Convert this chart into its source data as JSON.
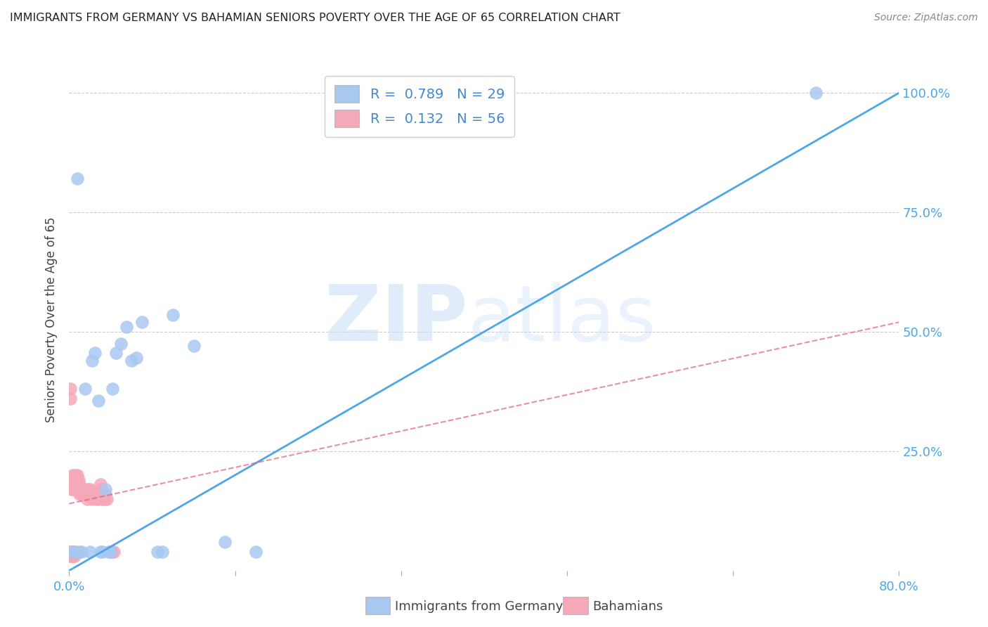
{
  "title": "IMMIGRANTS FROM GERMANY VS BAHAMIAN SENIORS POVERTY OVER THE AGE OF 65 CORRELATION CHART",
  "source": "Source: ZipAtlas.com",
  "ylabel": "Seniors Poverty Over the Age of 65",
  "right_yticks": [
    "100.0%",
    "75.0%",
    "50.0%",
    "25.0%"
  ],
  "right_ytick_vals": [
    1.0,
    0.75,
    0.5,
    0.25
  ],
  "legend_label1_R": "0.789",
  "legend_label1_N": "29",
  "legend_label2_R": "0.132",
  "legend_label2_N": "56",
  "footer_label1": "Immigrants from Germany",
  "footer_label2": "Bahamians",
  "blue_color": "#a8c8f0",
  "pink_color": "#f5a8b8",
  "blue_line_color": "#4da6e8",
  "pink_line_color": "#e06080",
  "blue_scatter_x": [
    0.008,
    0.015,
    0.022,
    0.025,
    0.028,
    0.032,
    0.035,
    0.038,
    0.042,
    0.045,
    0.05,
    0.055,
    0.06,
    0.065,
    0.07,
    0.085,
    0.09,
    0.1,
    0.12,
    0.15,
    0.18,
    0.004,
    0.006,
    0.01,
    0.012,
    0.02,
    0.03,
    0.04,
    0.72
  ],
  "blue_scatter_y": [
    0.82,
    0.38,
    0.44,
    0.455,
    0.355,
    0.04,
    0.17,
    0.04,
    0.38,
    0.455,
    0.475,
    0.51,
    0.44,
    0.445,
    0.52,
    0.04,
    0.04,
    0.535,
    0.47,
    0.06,
    0.04,
    0.04,
    0.04,
    0.04,
    0.04,
    0.04,
    0.04,
    0.04,
    1.0
  ],
  "pink_scatter_x": [
    0.001,
    0.001,
    0.002,
    0.002,
    0.003,
    0.003,
    0.004,
    0.004,
    0.005,
    0.005,
    0.006,
    0.006,
    0.007,
    0.007,
    0.008,
    0.008,
    0.009,
    0.009,
    0.01,
    0.01,
    0.011,
    0.012,
    0.013,
    0.014,
    0.015,
    0.016,
    0.017,
    0.018,
    0.019,
    0.02,
    0.021,
    0.022,
    0.023,
    0.025,
    0.026,
    0.028,
    0.03,
    0.031,
    0.032,
    0.033,
    0.034,
    0.035,
    0.036,
    0.04,
    0.041,
    0.043,
    0.001,
    0.001,
    0.002,
    0.002,
    0.003,
    0.003,
    0.004,
    0.004,
    0.005,
    0.005
  ],
  "pink_scatter_y": [
    0.38,
    0.36,
    0.19,
    0.17,
    0.2,
    0.18,
    0.19,
    0.17,
    0.19,
    0.17,
    0.2,
    0.18,
    0.19,
    0.17,
    0.2,
    0.18,
    0.19,
    0.17,
    0.18,
    0.16,
    0.17,
    0.16,
    0.17,
    0.16,
    0.17,
    0.16,
    0.15,
    0.17,
    0.16,
    0.17,
    0.16,
    0.15,
    0.16,
    0.16,
    0.15,
    0.15,
    0.18,
    0.17,
    0.15,
    0.16,
    0.15,
    0.16,
    0.15,
    0.04,
    0.04,
    0.04,
    0.04,
    0.03,
    0.04,
    0.03,
    0.04,
    0.03,
    0.04,
    0.03,
    0.04,
    0.03
  ],
  "xlim": [
    0.0,
    0.8
  ],
  "ylim": [
    0.0,
    1.05
  ],
  "blue_regression_x0": 0.0,
  "blue_regression_y0": 0.0,
  "blue_regression_x1": 0.8,
  "blue_regression_y1": 1.0,
  "pink_regression_x0": 0.0,
  "pink_regression_y0": 0.14,
  "pink_regression_x1": 0.8,
  "pink_regression_y1": 0.52
}
